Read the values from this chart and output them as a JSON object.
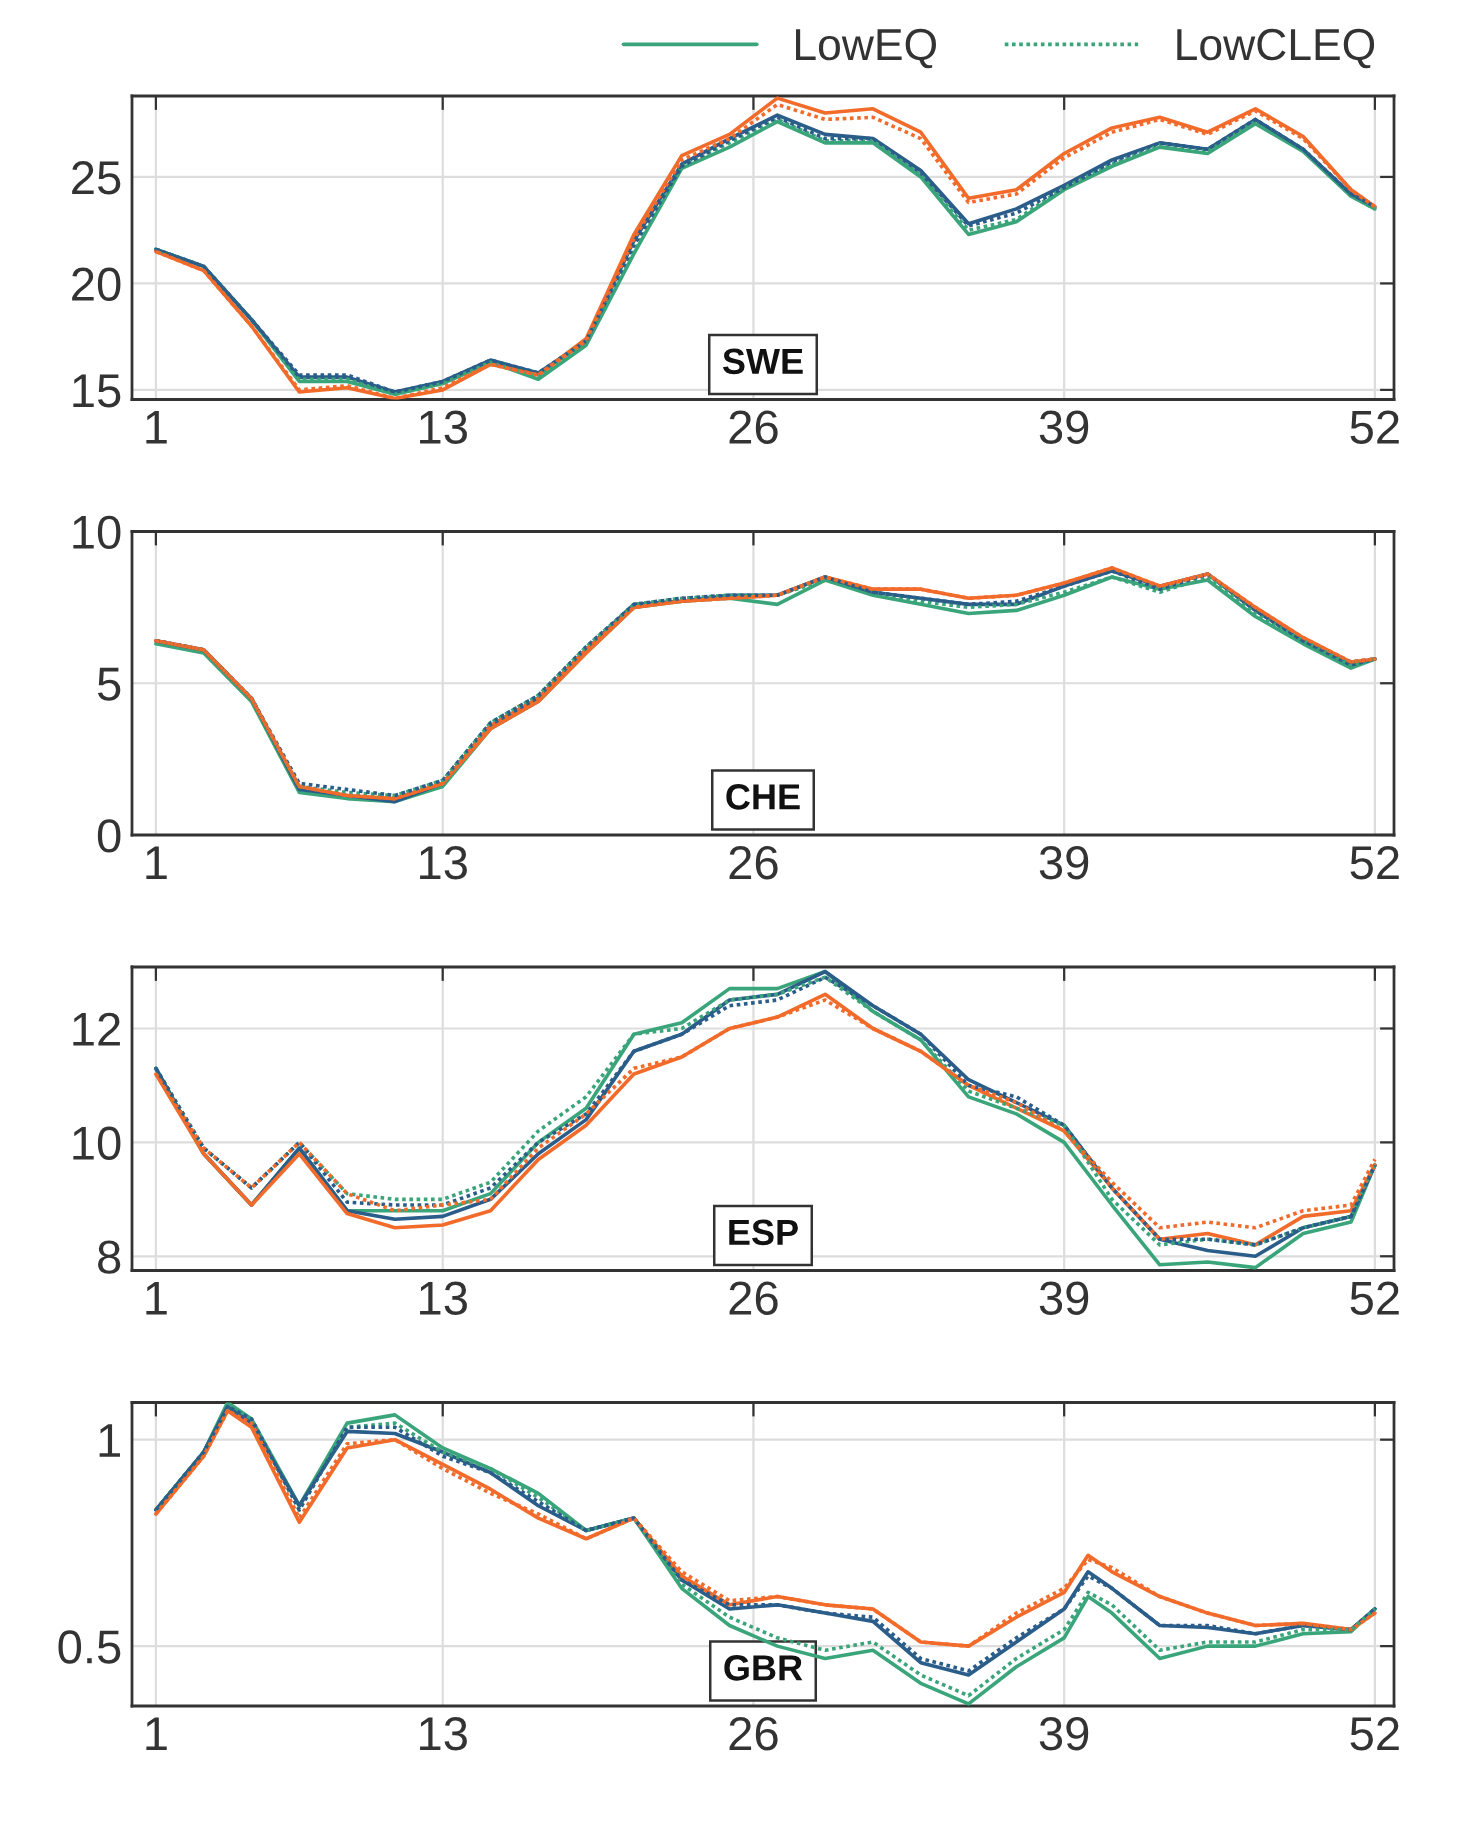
{
  "chart_data": [
    {
      "type": "line",
      "annotations": [
        "SWE"
      ],
      "legend": "top right",
      "grid": true,
      "xlim": [
        0,
        52.8
      ],
      "xticks": [
        1,
        13,
        26,
        39,
        52
      ],
      "ylim": [
        14.55,
        28.8
      ],
      "yticks": [
        15,
        20,
        25
      ],
      "x": [
        1,
        3,
        5,
        7,
        9,
        11,
        13,
        15,
        17,
        19,
        21,
        23,
        25,
        27,
        29,
        31,
        33,
        35,
        37,
        39,
        41,
        43,
        45,
        47,
        49,
        51,
        52
      ],
      "series": [
        {
          "name": "LowEQ",
          "color": "#3aa57a",
          "line_style": "solid",
          "values": [
            21.6,
            20.8,
            18.3,
            15.4,
            15.4,
            14.8,
            15.3,
            16.3,
            15.5,
            17.1,
            21.4,
            25.4,
            26.4,
            27.6,
            26.6,
            26.6,
            25.0,
            22.3,
            22.9,
            24.4,
            25.5,
            26.4,
            26.1,
            27.5,
            26.2,
            24.1,
            23.5
          ]
        },
        {
          "name": "LowCLEQ",
          "color": "#3aa57a",
          "line_style": "dotted",
          "values": [
            21.6,
            20.8,
            18.3,
            15.5,
            15.5,
            14.8,
            15.3,
            16.3,
            15.6,
            17.2,
            21.5,
            25.5,
            26.6,
            27.7,
            26.7,
            26.7,
            25.1,
            22.5,
            23.0,
            24.5,
            25.6,
            26.5,
            26.2,
            27.6,
            26.3,
            24.1,
            23.5
          ]
        },
        {
          "color": "#2b5d8a",
          "line_style": "solid",
          "values": [
            21.6,
            20.8,
            18.3,
            15.6,
            15.6,
            14.9,
            15.4,
            16.4,
            15.8,
            17.3,
            22.0,
            25.6,
            26.8,
            27.9,
            27.0,
            26.8,
            25.3,
            22.8,
            23.5,
            24.6,
            25.8,
            26.6,
            26.3,
            27.7,
            26.3,
            24.2,
            23.6
          ]
        },
        {
          "color": "#2b5d8a",
          "line_style": "dotted",
          "values": [
            21.6,
            20.8,
            18.3,
            15.7,
            15.7,
            14.9,
            15.4,
            16.4,
            15.8,
            17.3,
            21.8,
            25.5,
            26.7,
            27.8,
            26.8,
            26.8,
            25.2,
            22.7,
            23.3,
            24.5,
            25.7,
            26.6,
            26.3,
            27.7,
            26.3,
            24.2,
            23.6
          ]
        },
        {
          "color": "#f26b2a",
          "line_style": "solid",
          "values": [
            21.5,
            20.6,
            18.0,
            14.9,
            15.1,
            14.6,
            15.0,
            16.2,
            15.7,
            17.4,
            22.3,
            26.0,
            27.0,
            28.7,
            28.0,
            28.2,
            27.1,
            24.0,
            24.4,
            26.1,
            27.3,
            27.8,
            27.1,
            28.2,
            26.9,
            24.4,
            23.6
          ]
        },
        {
          "color": "#f26b2a",
          "line_style": "dotted",
          "values": [
            21.5,
            20.6,
            18.0,
            15.0,
            15.2,
            14.6,
            15.1,
            16.2,
            15.7,
            17.3,
            22.1,
            25.8,
            26.8,
            28.4,
            27.7,
            27.8,
            26.8,
            23.8,
            24.2,
            25.9,
            27.1,
            27.7,
            27.0,
            28.1,
            26.8,
            24.4,
            23.6
          ]
        }
      ]
    },
    {
      "type": "line",
      "annotations": [
        "CHE"
      ],
      "grid": true,
      "xlim": [
        0,
        52.8
      ],
      "xticks": [
        1,
        13,
        26,
        39,
        52
      ],
      "ylim": [
        0,
        10
      ],
      "yticks": [
        0,
        5,
        10
      ],
      "x": [
        1,
        3,
        5,
        7,
        9,
        11,
        13,
        15,
        17,
        19,
        21,
        23,
        25,
        27,
        29,
        31,
        33,
        35,
        37,
        39,
        41,
        43,
        45,
        47,
        49,
        51,
        52
      ],
      "series": [
        {
          "color": "#3aa57a",
          "line_style": "solid",
          "values": [
            6.3,
            6.0,
            4.4,
            1.4,
            1.2,
            1.1,
            1.6,
            3.5,
            4.4,
            6.0,
            7.5,
            7.7,
            7.8,
            7.6,
            8.4,
            7.9,
            7.6,
            7.3,
            7.4,
            7.9,
            8.5,
            8.1,
            8.4,
            7.2,
            6.3,
            5.5,
            5.8
          ]
        },
        {
          "color": "#3aa57a",
          "line_style": "dotted",
          "values": [
            6.4,
            6.1,
            4.5,
            1.6,
            1.4,
            1.3,
            1.8,
            3.7,
            4.6,
            6.2,
            7.6,
            7.8,
            7.9,
            7.9,
            8.4,
            8.0,
            7.7,
            7.5,
            7.6,
            8.0,
            8.5,
            8.0,
            8.5,
            7.3,
            6.4,
            5.6,
            5.8
          ]
        },
        {
          "color": "#2b5d8a",
          "line_style": "solid",
          "values": [
            6.4,
            6.1,
            4.5,
            1.5,
            1.3,
            1.1,
            1.7,
            3.6,
            4.5,
            6.1,
            7.6,
            7.7,
            7.9,
            7.9,
            8.5,
            8.0,
            7.8,
            7.6,
            7.6,
            8.2,
            8.7,
            8.2,
            8.6,
            7.4,
            6.4,
            5.6,
            5.8
          ]
        },
        {
          "color": "#2b5d8a",
          "line_style": "dotted",
          "values": [
            6.4,
            6.1,
            4.5,
            1.7,
            1.5,
            1.3,
            1.8,
            3.7,
            4.6,
            6.2,
            7.6,
            7.8,
            7.9,
            7.9,
            8.5,
            8.0,
            7.8,
            7.6,
            7.7,
            8.2,
            8.7,
            8.1,
            8.6,
            7.4,
            6.4,
            5.7,
            5.8
          ]
        },
        {
          "color": "#f26b2a",
          "line_style": "solid",
          "values": [
            6.4,
            6.1,
            4.5,
            1.6,
            1.3,
            1.2,
            1.7,
            3.5,
            4.4,
            6.0,
            7.5,
            7.7,
            7.8,
            7.9,
            8.5,
            8.1,
            8.1,
            7.8,
            7.9,
            8.3,
            8.8,
            8.2,
            8.6,
            7.5,
            6.5,
            5.7,
            5.8
          ]
        },
        {
          "color": "#f26b2a",
          "line_style": "dotted",
          "values": [
            6.4,
            6.1,
            4.5,
            1.6,
            1.3,
            1.2,
            1.7,
            3.6,
            4.5,
            6.1,
            7.5,
            7.7,
            7.8,
            7.9,
            8.5,
            8.1,
            8.1,
            7.8,
            7.9,
            8.3,
            8.8,
            8.2,
            8.6,
            7.5,
            6.5,
            5.7,
            5.8
          ]
        }
      ]
    },
    {
      "type": "line",
      "annotations": [
        "ESP"
      ],
      "grid": true,
      "xlim": [
        0,
        52.8
      ],
      "xticks": [
        1,
        13,
        26,
        39,
        52
      ],
      "ylim": [
        7.75,
        13.08
      ],
      "yticks": [
        8,
        10,
        12
      ],
      "x": [
        1,
        3,
        5,
        7,
        9,
        11,
        13,
        15,
        17,
        19,
        21,
        23,
        25,
        27,
        29,
        31,
        33,
        35,
        37,
        39,
        41,
        43,
        45,
        47,
        49,
        51,
        52
      ],
      "series": [
        {
          "color": "#3aa57a",
          "line_style": "solid",
          "values": [
            11.3,
            9.8,
            8.9,
            9.9,
            8.8,
            8.8,
            8.8,
            9.1,
            10.0,
            10.6,
            11.9,
            12.1,
            12.7,
            12.7,
            13.0,
            12.3,
            11.8,
            10.8,
            10.5,
            10.0,
            8.9,
            7.85,
            7.9,
            7.8,
            8.4,
            8.6,
            9.6
          ]
        },
        {
          "color": "#3aa57a",
          "line_style": "dotted",
          "values": [
            11.3,
            9.9,
            9.2,
            10.0,
            9.1,
            9.0,
            9.0,
            9.3,
            10.2,
            10.8,
            11.9,
            12.0,
            12.5,
            12.6,
            12.9,
            12.3,
            11.8,
            10.9,
            10.6,
            10.3,
            9.0,
            8.2,
            8.3,
            8.2,
            8.5,
            8.7,
            9.6
          ]
        },
        {
          "color": "#2b5d8a",
          "line_style": "solid",
          "values": [
            11.3,
            9.8,
            8.9,
            9.9,
            8.8,
            8.65,
            8.7,
            9.0,
            9.8,
            10.4,
            11.6,
            11.9,
            12.5,
            12.6,
            13.0,
            12.4,
            11.9,
            11.1,
            10.7,
            10.3,
            9.2,
            8.3,
            8.1,
            8.0,
            8.5,
            8.7,
            9.6
          ]
        },
        {
          "color": "#2b5d8a",
          "line_style": "dotted",
          "values": [
            11.3,
            9.9,
            9.2,
            10.0,
            8.95,
            8.9,
            8.9,
            9.2,
            10.0,
            10.5,
            11.6,
            11.9,
            12.4,
            12.5,
            12.9,
            12.4,
            11.9,
            11.0,
            10.8,
            10.3,
            9.2,
            8.3,
            8.3,
            8.2,
            8.5,
            8.7,
            9.6
          ]
        },
        {
          "color": "#f26b2a",
          "line_style": "solid",
          "values": [
            11.2,
            9.8,
            8.9,
            9.8,
            8.75,
            8.5,
            8.55,
            8.8,
            9.7,
            10.3,
            11.2,
            11.5,
            12.0,
            12.2,
            12.6,
            12.0,
            11.6,
            11.0,
            10.6,
            10.2,
            9.2,
            8.3,
            8.4,
            8.2,
            8.7,
            8.8,
            9.6
          ]
        },
        {
          "color": "#f26b2a",
          "line_style": "dotted",
          "values": [
            11.2,
            9.9,
            9.2,
            10.0,
            9.1,
            8.8,
            8.9,
            9.0,
            9.9,
            10.5,
            11.3,
            11.5,
            12.0,
            12.2,
            12.5,
            12.0,
            11.6,
            11.0,
            10.7,
            10.2,
            9.3,
            8.5,
            8.6,
            8.5,
            8.8,
            8.9,
            9.7
          ]
        }
      ]
    },
    {
      "type": "line",
      "annotations": [
        "GBR"
      ],
      "grid": true,
      "xlim": [
        0,
        52.8
      ],
      "xticks": [
        1,
        13,
        26,
        39,
        52
      ],
      "ylim": [
        0.355,
        1.09
      ],
      "yticks": [
        0.5,
        1
      ],
      "x": [
        1,
        3,
        4,
        5,
        7,
        9,
        11,
        13,
        15,
        17,
        19,
        21,
        23,
        25,
        27,
        29,
        31,
        33,
        35,
        37,
        39,
        40,
        41,
        43,
        45,
        47,
        49,
        51,
        52
      ],
      "series": [
        {
          "color": "#3aa57a",
          "line_style": "solid",
          "values": [
            0.83,
            0.97,
            1.09,
            1.05,
            0.84,
            1.04,
            1.06,
            0.98,
            0.93,
            0.87,
            0.78,
            0.81,
            0.64,
            0.55,
            0.5,
            0.47,
            0.49,
            0.41,
            0.36,
            0.45,
            0.52,
            0.62,
            0.58,
            0.47,
            0.5,
            0.5,
            0.53,
            0.535,
            0.59
          ]
        },
        {
          "color": "#3aa57a",
          "line_style": "dotted",
          "values": [
            0.83,
            0.97,
            1.08,
            1.05,
            0.83,
            1.03,
            1.04,
            0.97,
            0.93,
            0.86,
            0.78,
            0.81,
            0.65,
            0.57,
            0.52,
            0.49,
            0.51,
            0.43,
            0.38,
            0.47,
            0.54,
            0.63,
            0.6,
            0.49,
            0.51,
            0.51,
            0.54,
            0.54,
            0.59
          ]
        },
        {
          "color": "#2b5d8a",
          "line_style": "solid",
          "values": [
            0.83,
            0.97,
            1.08,
            1.04,
            0.84,
            1.02,
            1.015,
            0.97,
            0.92,
            0.84,
            0.78,
            0.81,
            0.66,
            0.59,
            0.6,
            0.58,
            0.56,
            0.46,
            0.43,
            0.51,
            0.59,
            0.68,
            0.64,
            0.55,
            0.545,
            0.53,
            0.55,
            0.54,
            0.59
          ]
        },
        {
          "color": "#2b5d8a",
          "line_style": "dotted",
          "values": [
            0.83,
            0.97,
            1.08,
            1.05,
            0.83,
            1.03,
            1.03,
            0.96,
            0.92,
            0.85,
            0.78,
            0.81,
            0.66,
            0.6,
            0.6,
            0.58,
            0.57,
            0.47,
            0.44,
            0.52,
            0.59,
            0.67,
            0.64,
            0.55,
            0.55,
            0.53,
            0.55,
            0.54,
            0.59
          ]
        },
        {
          "color": "#f26b2a",
          "line_style": "solid",
          "values": [
            0.82,
            0.96,
            1.07,
            1.03,
            0.8,
            0.98,
            1.0,
            0.94,
            0.88,
            0.81,
            0.76,
            0.81,
            0.67,
            0.6,
            0.62,
            0.6,
            0.59,
            0.51,
            0.5,
            0.57,
            0.63,
            0.72,
            0.68,
            0.62,
            0.58,
            0.55,
            0.555,
            0.54,
            0.58
          ]
        },
        {
          "color": "#f26b2a",
          "line_style": "dotted",
          "values": [
            0.82,
            0.96,
            1.07,
            1.04,
            0.81,
            0.99,
            1.0,
            0.93,
            0.87,
            0.82,
            0.76,
            0.81,
            0.68,
            0.61,
            0.62,
            0.6,
            0.59,
            0.51,
            0.5,
            0.58,
            0.64,
            0.71,
            0.69,
            0.62,
            0.58,
            0.55,
            0.555,
            0.54,
            0.58
          ]
        }
      ]
    }
  ]
}
